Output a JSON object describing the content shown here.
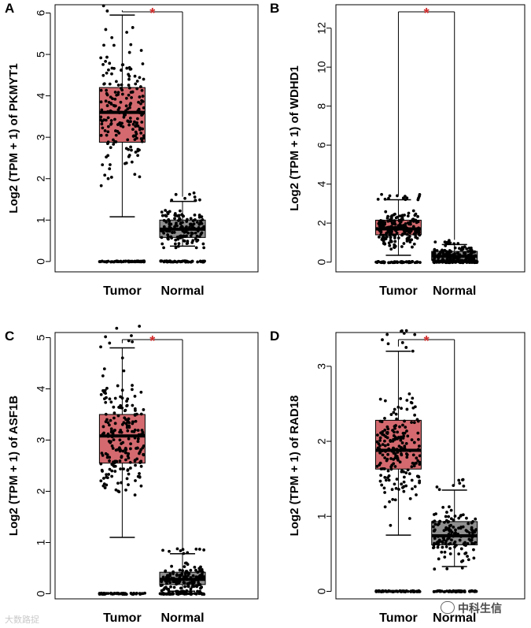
{
  "figure": {
    "watermark_left": "大数路捉",
    "watermark_right": "中科生信"
  },
  "chart_data": [
    {
      "panel_label": "A",
      "type": "box",
      "gene": "PKMYT1",
      "ylabel": "Log2 (TPM + 1) of PKMYT1",
      "categories": [
        "Tumor",
        "Normal"
      ],
      "yticks": [
        0,
        1,
        2,
        3,
        4,
        5,
        6
      ],
      "ylim": [
        -0.25,
        6.2
      ],
      "significance": "*",
      "box_colors": [
        "#d46a6f",
        "#8f8f8f"
      ],
      "boxes": [
        {
          "group": "Tumor",
          "whisker_low": 1.08,
          "q1": 2.88,
          "median": 3.6,
          "q3": 4.2,
          "whisker_high": 5.95
        },
        {
          "group": "Normal",
          "whisker_low": 0.37,
          "q1": 0.58,
          "median": 0.78,
          "q3": 1.0,
          "whisker_high": 1.45
        }
      ]
    },
    {
      "panel_label": "B",
      "type": "box",
      "gene": "WDHD1",
      "ylabel": "Log2 (TPM + 1) of WDHD1",
      "categories": [
        "Tumor",
        "Normal"
      ],
      "yticks": [
        0,
        2,
        4,
        6,
        8,
        10,
        12
      ],
      "ylim": [
        -0.5,
        13.2
      ],
      "significance": "*",
      "box_colors": [
        "#d46a6f",
        "#8f8f8f"
      ],
      "boxes": [
        {
          "group": "Tumor",
          "whisker_low": 0.35,
          "q1": 1.4,
          "median": 1.7,
          "q3": 2.15,
          "whisker_high": 3.2
        },
        {
          "group": "Normal",
          "whisker_low": 0.0,
          "q1": 0.1,
          "median": 0.3,
          "q3": 0.55,
          "whisker_high": 0.9
        }
      ]
    },
    {
      "panel_label": "C",
      "type": "box",
      "gene": "ASF1B",
      "ylabel": "Log2 (TPM + 1) of ASF1B",
      "categories": [
        "Tumor",
        "Normal"
      ],
      "yticks": [
        0,
        1,
        2,
        3,
        4,
        5
      ],
      "ylim": [
        -0.1,
        5.1
      ],
      "significance": "*",
      "box_colors": [
        "#d46a6f",
        "#8f8f8f"
      ],
      "boxes": [
        {
          "group": "Tumor",
          "whisker_low": 1.1,
          "q1": 2.55,
          "median": 3.08,
          "q3": 3.5,
          "whisker_high": 4.8
        },
        {
          "group": "Normal",
          "whisker_low": 0.05,
          "q1": 0.18,
          "median": 0.28,
          "q3": 0.42,
          "whisker_high": 0.78
        }
      ]
    },
    {
      "panel_label": "D",
      "type": "box",
      "gene": "RAD18",
      "ylabel": "Log2 (TPM + 1) of RAD18",
      "categories": [
        "Tumor",
        "Normal"
      ],
      "yticks": [
        0,
        1,
        2,
        3
      ],
      "ylim": [
        -0.1,
        3.45
      ],
      "significance": "*",
      "box_colors": [
        "#d46a6f",
        "#8f8f8f"
      ],
      "boxes": [
        {
          "group": "Tumor",
          "whisker_low": 0.75,
          "q1": 1.63,
          "median": 1.88,
          "q3": 2.28,
          "whisker_high": 3.2
        },
        {
          "group": "Normal",
          "whisker_low": 0.33,
          "q1": 0.62,
          "median": 0.74,
          "q3": 0.93,
          "whisker_high": 1.35
        }
      ]
    }
  ]
}
